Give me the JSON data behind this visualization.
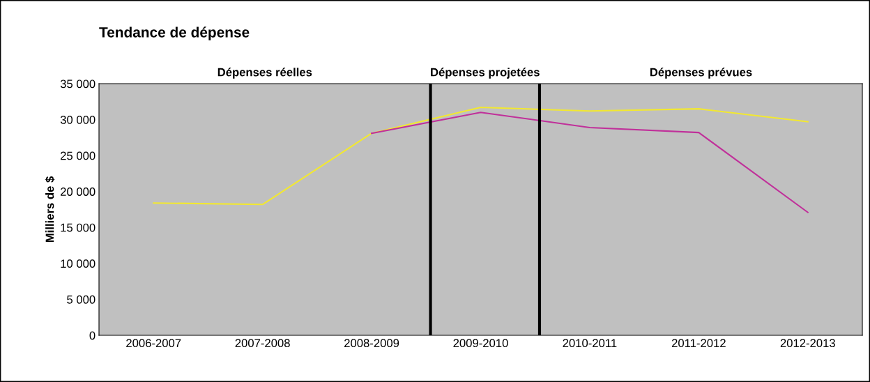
{
  "chart_data": {
    "type": "line",
    "title": "Tendance de dépense",
    "ylabel": "Milliers de $",
    "categories": [
      "2006-2007",
      "2007-2008",
      "2008-2009",
      "2009-2010",
      "2010-2011",
      "2011-2012",
      "2012-2013"
    ],
    "series": [
      {
        "color": "#f2e830",
        "values": [
          18400,
          18200,
          28100,
          31700,
          31200,
          31500,
          29700
        ]
      },
      {
        "color": "#c0309a",
        "values": [
          null,
          null,
          28100,
          31000,
          28900,
          28200,
          17100
        ]
      }
    ],
    "ylim": [
      0,
      35000
    ],
    "yticks": [
      {
        "value": 0,
        "label": "0"
      },
      {
        "value": 5000,
        "label": "5 000"
      },
      {
        "value": 10000,
        "label": "10 000"
      },
      {
        "value": 15000,
        "label": "15 000"
      },
      {
        "value": 20000,
        "label": "20 000"
      },
      {
        "value": 25000,
        "label": "25 000"
      },
      {
        "value": 30000,
        "label": "30 000"
      },
      {
        "value": 35000,
        "label": "35 000"
      }
    ],
    "annotations": [
      "Dépenses réelles",
      "Dépenses projetées",
      "Dépenses prévues"
    ],
    "marker": "none",
    "line_style": "solid",
    "legend": false,
    "grid": false
  }
}
